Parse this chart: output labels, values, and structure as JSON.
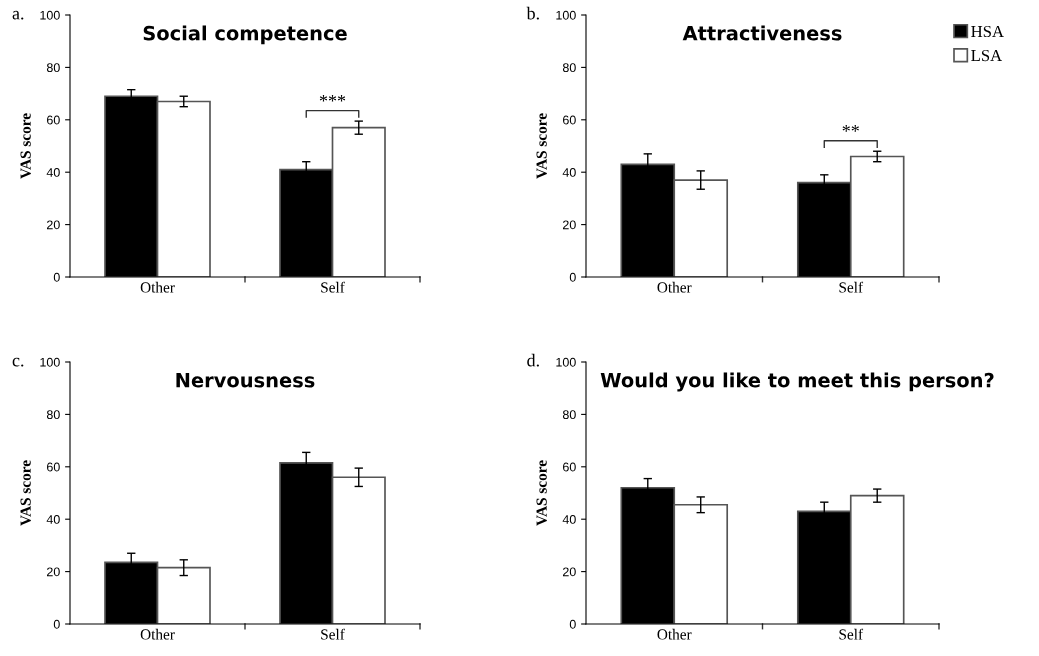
{
  "chart_data": [
    {
      "type": "bar",
      "title": "Social competence",
      "ylabel": "VAS score",
      "categories": [
        "Other",
        "Self"
      ],
      "ylim": [
        0,
        100
      ],
      "yticks": [
        0,
        20,
        40,
        60,
        80,
        100
      ],
      "legend": false,
      "grid": false,
      "annotations": [
        "a.",
        "***"
      ],
      "series": [
        {
          "color": "#000000",
          "values": [
            69,
            41
          ],
          "errors": [
            2.5,
            3
          ]
        },
        {
          "color": "#ffffff",
          "values": [
            67,
            57
          ],
          "errors": [
            2,
            2.5
          ]
        }
      ]
    },
    {
      "type": "bar",
      "title": "Attractiveness",
      "ylabel": "VAS score",
      "categories": [
        "Other",
        "Self"
      ],
      "ylim": [
        0,
        100
      ],
      "yticks": [
        0,
        20,
        40,
        60,
        80,
        100
      ],
      "legend": "top right",
      "grid": false,
      "annotations": [
        "b.",
        "**"
      ],
      "series": [
        {
          "name": "HSA",
          "color": "#000000",
          "values": [
            43,
            36
          ],
          "errors": [
            4,
            3
          ]
        },
        {
          "name": "LSA",
          "color": "#ffffff",
          "values": [
            37,
            46
          ],
          "errors": [
            3.5,
            2
          ]
        }
      ]
    },
    {
      "type": "bar",
      "title": "Nervousness",
      "ylabel": "VAS score",
      "categories": [
        "Other",
        "Self"
      ],
      "ylim": [
        0,
        100
      ],
      "yticks": [
        0,
        20,
        40,
        60,
        80,
        100
      ],
      "legend": false,
      "grid": false,
      "annotations": [
        "c."
      ],
      "series": [
        {
          "color": "#000000",
          "values": [
            23.5,
            61.5
          ],
          "errors": [
            3.5,
            4
          ]
        },
        {
          "color": "#ffffff",
          "values": [
            21.5,
            56
          ],
          "errors": [
            3,
            3.5
          ]
        }
      ]
    },
    {
      "type": "bar",
      "title": "Would you like to meet this person?",
      "ylabel": "VAS score",
      "categories": [
        "Other",
        "Self"
      ],
      "ylim": [
        0,
        100
      ],
      "yticks": [
        0,
        20,
        40,
        60,
        80,
        100
      ],
      "legend": false,
      "grid": false,
      "annotations": [
        "d."
      ],
      "series": [
        {
          "color": "#000000",
          "values": [
            52,
            43
          ],
          "errors": [
            3.5,
            3.5
          ]
        },
        {
          "color": "#ffffff",
          "values": [
            45.5,
            49
          ],
          "errors": [
            3,
            2.5
          ]
        }
      ]
    }
  ]
}
